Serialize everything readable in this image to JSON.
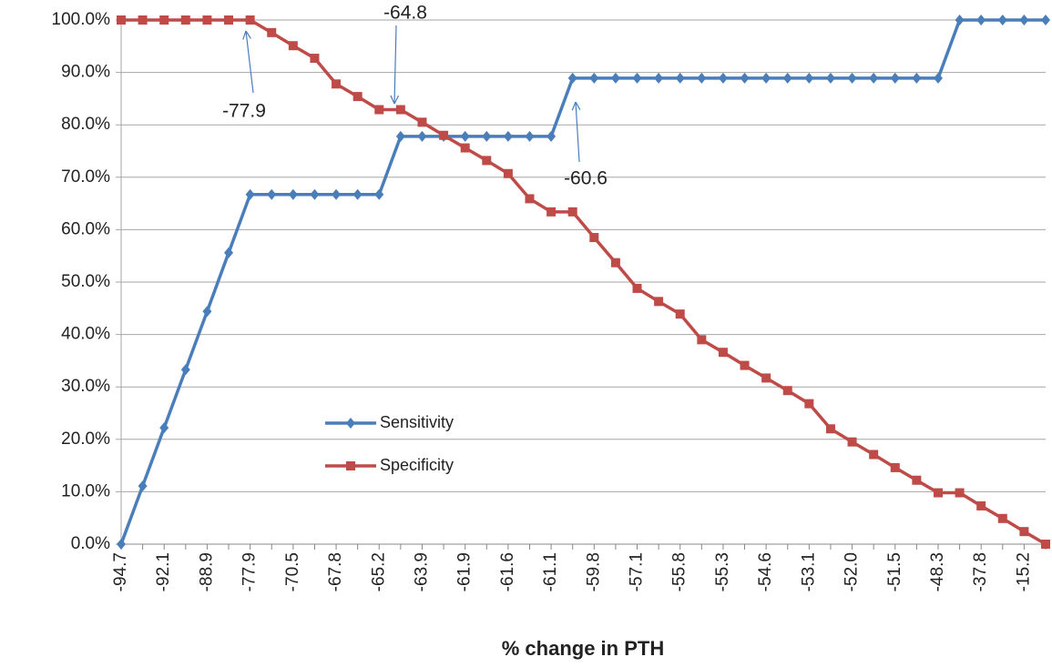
{
  "chart_data": {
    "type": "line",
    "x_label": "% change in PTH",
    "categories": [
      "-94.7",
      null,
      "-92.1",
      null,
      "-88.9",
      null,
      "-77.9",
      null,
      "-70.5",
      null,
      "-67.8",
      null,
      "-65.2",
      null,
      "-63.9",
      null,
      "-61.9",
      null,
      "-61.6",
      null,
      "-61.1",
      null,
      "-59.8",
      null,
      "-57.1",
      null,
      "-55.8",
      null,
      "-55.3",
      null,
      "-54.6",
      null,
      "-53.1",
      null,
      "-52.0",
      null,
      "-51.5",
      null,
      "-48.3",
      null,
      "-37.8",
      null,
      "-15.2",
      null
    ],
    "series": [
      {
        "name": "Sensitivity",
        "color": "#4a7ebb",
        "marker": "diamond",
        "values": [
          0,
          11.1,
          22.2,
          33.3,
          44.4,
          55.6,
          66.7,
          66.7,
          66.7,
          66.7,
          66.7,
          66.7,
          66.7,
          77.8,
          77.8,
          77.8,
          77.8,
          77.8,
          77.8,
          77.8,
          77.8,
          88.9,
          88.9,
          88.9,
          88.9,
          88.9,
          88.9,
          88.9,
          88.9,
          88.9,
          88.9,
          88.9,
          88.9,
          88.9,
          88.9,
          88.9,
          88.9,
          88.9,
          88.9,
          100,
          100,
          100,
          100,
          100
        ]
      },
      {
        "name": "Specificity",
        "color": "#be4b48",
        "marker": "square",
        "values": [
          100,
          100,
          100,
          100,
          100,
          100,
          100,
          97.6,
          95.1,
          92.7,
          87.8,
          85.4,
          82.9,
          82.9,
          80.5,
          78.0,
          75.6,
          73.2,
          70.7,
          65.9,
          63.4,
          63.4,
          58.5,
          53.7,
          48.8,
          46.3,
          43.9,
          39.0,
          36.6,
          34.1,
          31.7,
          29.3,
          26.8,
          22.0,
          19.5,
          17.1,
          14.6,
          12.2,
          9.8,
          9.8,
          7.3,
          4.9,
          2.4,
          0
        ]
      }
    ],
    "ylim": [
      0,
      100
    ],
    "yticks": [
      {
        "value": 0,
        "label": "0.0%"
      },
      {
        "value": 10,
        "label": "10.0%"
      },
      {
        "value": 20,
        "label": "20.0%"
      },
      {
        "value": 30,
        "label": "30.0%"
      },
      {
        "value": 40,
        "label": "40.0%"
      },
      {
        "value": 50,
        "label": "50.0%"
      },
      {
        "value": 60,
        "label": "60.0%"
      },
      {
        "value": 70,
        "label": "70.0%"
      },
      {
        "value": 80,
        "label": "80.0%"
      },
      {
        "value": 90,
        "label": "90.0%"
      },
      {
        "value": 100,
        "label": "100.0%"
      }
    ],
    "grid": true,
    "annotations": [
      "-77.9",
      "-64.8",
      "-60.6"
    ]
  }
}
